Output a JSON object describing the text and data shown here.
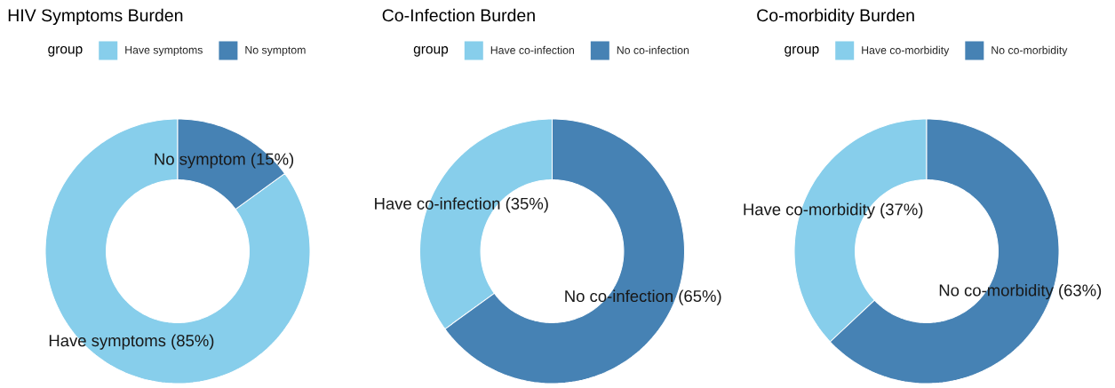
{
  "chart_data": [
    {
      "type": "donut",
      "title": "HIV Symptoms Burden",
      "legend_title": "group",
      "legend": "top",
      "categories": [
        "Have symptoms",
        "No symptom"
      ],
      "values": [
        85,
        15
      ],
      "colors": [
        "#87ceeb",
        "#4682b4"
      ],
      "value_labels": [
        "Have symptoms (85%)",
        "No symptom (15%)"
      ]
    },
    {
      "type": "donut",
      "title": "Co-Infection Burden",
      "legend_title": "group",
      "legend": "top",
      "categories": [
        "Have co-infection",
        "No co-infection"
      ],
      "values": [
        35,
        65
      ],
      "colors": [
        "#87ceeb",
        "#4682b4"
      ],
      "value_labels": [
        "Have co-infection (35%)",
        "No co-infection (65%)"
      ]
    },
    {
      "type": "donut",
      "title": "Co-morbidity Burden",
      "legend_title": "group",
      "legend": "top",
      "categories": [
        "Have co-morbidity",
        "No co-morbidity"
      ],
      "values": [
        37,
        63
      ],
      "colors": [
        "#87ceeb",
        "#4682b4"
      ],
      "value_labels": [
        "Have co-morbidity (37%)",
        "No co-morbidity (63%)"
      ]
    }
  ]
}
